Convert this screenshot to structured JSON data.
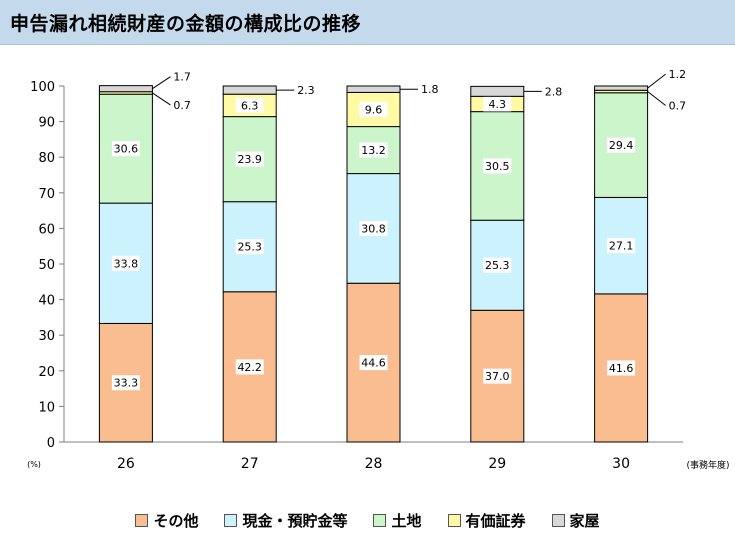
{
  "title": "申告漏れ相続財産の金額の構成比の推移",
  "legend_items": [
    {
      "label": "その他",
      "color": "#f9bd8f"
    },
    {
      "label": "現金・預貯金等",
      "color": "#ccf3fd"
    },
    {
      "label": "土地",
      "color": "#ccf5cc"
    },
    {
      "label": "有価証券",
      "color": "#fffaa3"
    },
    {
      "label": "家屋",
      "color": "#d8d8d8"
    }
  ],
  "chart_data": {
    "type": "bar",
    "stacked": true,
    "unit_label": "(%)",
    "x_unit_label": "(事務年度)",
    "categories": [
      "26",
      "27",
      "28",
      "29",
      "30"
    ],
    "series": [
      {
        "name": "その他",
        "color": "#f9bd8f",
        "values": [
          33.3,
          42.2,
          44.6,
          37.0,
          41.6
        ],
        "labels": [
          "33.3",
          "42.2",
          "44.6",
          "37.0",
          "41.6"
        ]
      },
      {
        "name": "現金・預貯金等",
        "color": "#ccf3fd",
        "values": [
          33.8,
          25.3,
          30.8,
          25.3,
          27.1
        ],
        "labels": [
          "33.8",
          "25.3",
          "30.8",
          "25.3",
          "27.1"
        ]
      },
      {
        "name": "土地",
        "color": "#ccf5cc",
        "values": [
          30.6,
          23.9,
          13.2,
          30.5,
          29.4
        ],
        "labels": [
          "30.6",
          "23.9",
          "13.2",
          "30.5",
          "29.4"
        ]
      },
      {
        "name": "有価証券",
        "color": "#fffaa3",
        "values": [
          0.7,
          6.3,
          9.6,
          4.3,
          0.7
        ],
        "labels": [
          "0.7",
          "6.3",
          "9.6",
          "4.3",
          "0.7"
        ]
      },
      {
        "name": "家屋",
        "color": "#d8d8d8",
        "values": [
          1.7,
          2.3,
          1.8,
          2.8,
          1.2
        ],
        "labels": [
          "1.7",
          "2.3",
          "1.8",
          "2.8",
          "1.2"
        ]
      }
    ],
    "ylim": [
      0,
      100
    ],
    "yticks": [
      "0",
      "10",
      "20",
      "30",
      "40",
      "50",
      "60",
      "70",
      "80",
      "90",
      "100"
    ],
    "grid": false
  }
}
